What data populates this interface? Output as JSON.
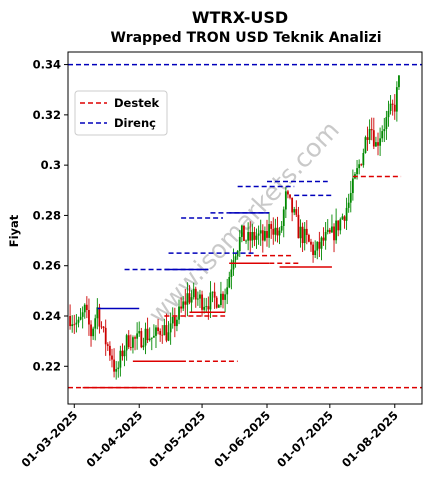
{
  "chart_data": {
    "type": "candlestick",
    "title": "WTRX-USD",
    "subtitle": "Wrapped TRON USD Teknik Analizi",
    "xlabel": "",
    "ylabel": "Fiyat",
    "ylim": [
      0.205,
      0.345
    ],
    "yticks": [
      {
        "value": 0.22,
        "label": "0.22"
      },
      {
        "value": 0.24,
        "label": "0.24"
      },
      {
        "value": 0.26,
        "label": "0.26"
      },
      {
        "value": 0.28,
        "label": "0.28"
      },
      {
        "value": 0.3,
        "label": "0.3"
      },
      {
        "value": 0.32,
        "label": "0.32"
      },
      {
        "value": 0.34,
        "label": "0.34"
      }
    ],
    "xlim": [
      "2025-02-26",
      "2025-08-14"
    ],
    "xticks": [
      {
        "date": "2025-03-01",
        "label": "01-03-2025"
      },
      {
        "date": "2025-04-01",
        "label": "01-04-2025"
      },
      {
        "date": "2025-05-01",
        "label": "01-05-2025"
      },
      {
        "date": "2025-06-01",
        "label": "01-06-2025"
      },
      {
        "date": "2025-07-01",
        "label": "01-07-2025"
      },
      {
        "date": "2025-08-01",
        "label": "01-08-2025"
      }
    ],
    "legend": {
      "placement": "upper-left",
      "entries": [
        {
          "label": "Destek",
          "color": "#dd0000",
          "style": "dashed"
        },
        {
          "label": "Direnç",
          "color": "#0000bb",
          "style": "dashed"
        }
      ]
    },
    "watermark": "www.isomarkets.com",
    "colors": {
      "up": "#008800",
      "down": "#cc0000",
      "support": "#dd0000",
      "resistance": "#0000bb"
    },
    "support_lines": [
      {
        "value": 0.2115,
        "from": "2025-02-26",
        "to": "2025-08-14",
        "dashed": true
      },
      {
        "value": 0.2115,
        "from": "2025-03-05",
        "to": "2025-04-05",
        "dashed": false
      },
      {
        "value": 0.222,
        "from": "2025-03-29",
        "to": "2025-05-18",
        "dashed": true
      },
      {
        "value": 0.222,
        "from": "2025-03-29",
        "to": "2025-04-21",
        "dashed": false
      },
      {
        "value": 0.24,
        "from": "2025-04-13",
        "to": "2025-05-12",
        "dashed": true
      },
      {
        "value": 0.2415,
        "from": "2025-04-25",
        "to": "2025-05-12",
        "dashed": false
      },
      {
        "value": 0.261,
        "from": "2025-05-14",
        "to": "2025-06-02",
        "dashed": false
      },
      {
        "value": 0.261,
        "from": "2025-05-14",
        "to": "2025-06-16",
        "dashed": true
      },
      {
        "value": 0.264,
        "from": "2025-05-22",
        "to": "2025-06-13",
        "dashed": true
      },
      {
        "value": 0.2595,
        "from": "2025-06-07",
        "to": "2025-07-02",
        "dashed": false
      },
      {
        "value": 0.2955,
        "from": "2025-07-12",
        "to": "2025-08-04",
        "dashed": true
      }
    ],
    "resistance_lines": [
      {
        "value": 0.34,
        "from": "2025-02-26",
        "to": "2025-08-14",
        "dashed": true
      },
      {
        "value": 0.243,
        "from": "2025-03-12",
        "to": "2025-04-01",
        "dashed": false
      },
      {
        "value": 0.2585,
        "from": "2025-03-25",
        "to": "2025-05-04",
        "dashed": true
      },
      {
        "value": 0.2585,
        "from": "2025-04-13",
        "to": "2025-05-04",
        "dashed": false
      },
      {
        "value": 0.265,
        "from": "2025-04-15",
        "to": "2025-05-27",
        "dashed": true
      },
      {
        "value": 0.279,
        "from": "2025-04-21",
        "to": "2025-05-11",
        "dashed": true
      },
      {
        "value": 0.281,
        "from": "2025-05-05",
        "to": "2025-06-02",
        "dashed": true
      },
      {
        "value": 0.281,
        "from": "2025-05-14",
        "to": "2025-06-02",
        "dashed": false
      },
      {
        "value": 0.2915,
        "from": "2025-05-18",
        "to": "2025-06-14",
        "dashed": true
      },
      {
        "value": 0.2935,
        "from": "2025-06-01",
        "to": "2025-06-30",
        "dashed": true
      },
      {
        "value": 0.288,
        "from": "2025-06-14",
        "to": "2025-07-02",
        "dashed": true
      }
    ],
    "anchors": [
      [
        "2025-02-27",
        0.24
      ],
      [
        "2025-03-03",
        0.236
      ],
      [
        "2025-03-06",
        0.242
      ],
      [
        "2025-03-09",
        0.233
      ],
      [
        "2025-03-12",
        0.243
      ],
      [
        "2025-03-15",
        0.232
      ],
      [
        "2025-03-19",
        0.224
      ],
      [
        "2025-03-21",
        0.216
      ],
      [
        "2025-03-24",
        0.226
      ],
      [
        "2025-03-27",
        0.231
      ],
      [
        "2025-03-31",
        0.23
      ],
      [
        "2025-04-04",
        0.233
      ],
      [
        "2025-04-08",
        0.231
      ],
      [
        "2025-04-12",
        0.236
      ],
      [
        "2025-04-15",
        0.232
      ],
      [
        "2025-04-18",
        0.238
      ],
      [
        "2025-04-21",
        0.242
      ],
      [
        "2025-04-24",
        0.248
      ],
      [
        "2025-04-28",
        0.247
      ],
      [
        "2025-05-02",
        0.246
      ],
      [
        "2025-05-06",
        0.246
      ],
      [
        "2025-05-10",
        0.248
      ],
      [
        "2025-05-13",
        0.252
      ],
      [
        "2025-05-16",
        0.265
      ],
      [
        "2025-05-20",
        0.272
      ],
      [
        "2025-05-23",
        0.27
      ],
      [
        "2025-05-27",
        0.272
      ],
      [
        "2025-05-31",
        0.27
      ],
      [
        "2025-06-03",
        0.277
      ],
      [
        "2025-06-07",
        0.271
      ],
      [
        "2025-06-10",
        0.287
      ],
      [
        "2025-06-13",
        0.282
      ],
      [
        "2025-06-16",
        0.274
      ],
      [
        "2025-06-20",
        0.27
      ],
      [
        "2025-06-24",
        0.265
      ],
      [
        "2025-06-28",
        0.27
      ],
      [
        "2025-07-02",
        0.272
      ],
      [
        "2025-07-06",
        0.278
      ],
      [
        "2025-07-10",
        0.285
      ],
      [
        "2025-07-13",
        0.294
      ],
      [
        "2025-07-17",
        0.306
      ],
      [
        "2025-07-20",
        0.318
      ],
      [
        "2025-07-23",
        0.308
      ],
      [
        "2025-07-26",
        0.315
      ],
      [
        "2025-07-29",
        0.319
      ],
      [
        "2025-08-01",
        0.324
      ],
      [
        "2025-08-03",
        0.333
      ]
    ]
  }
}
